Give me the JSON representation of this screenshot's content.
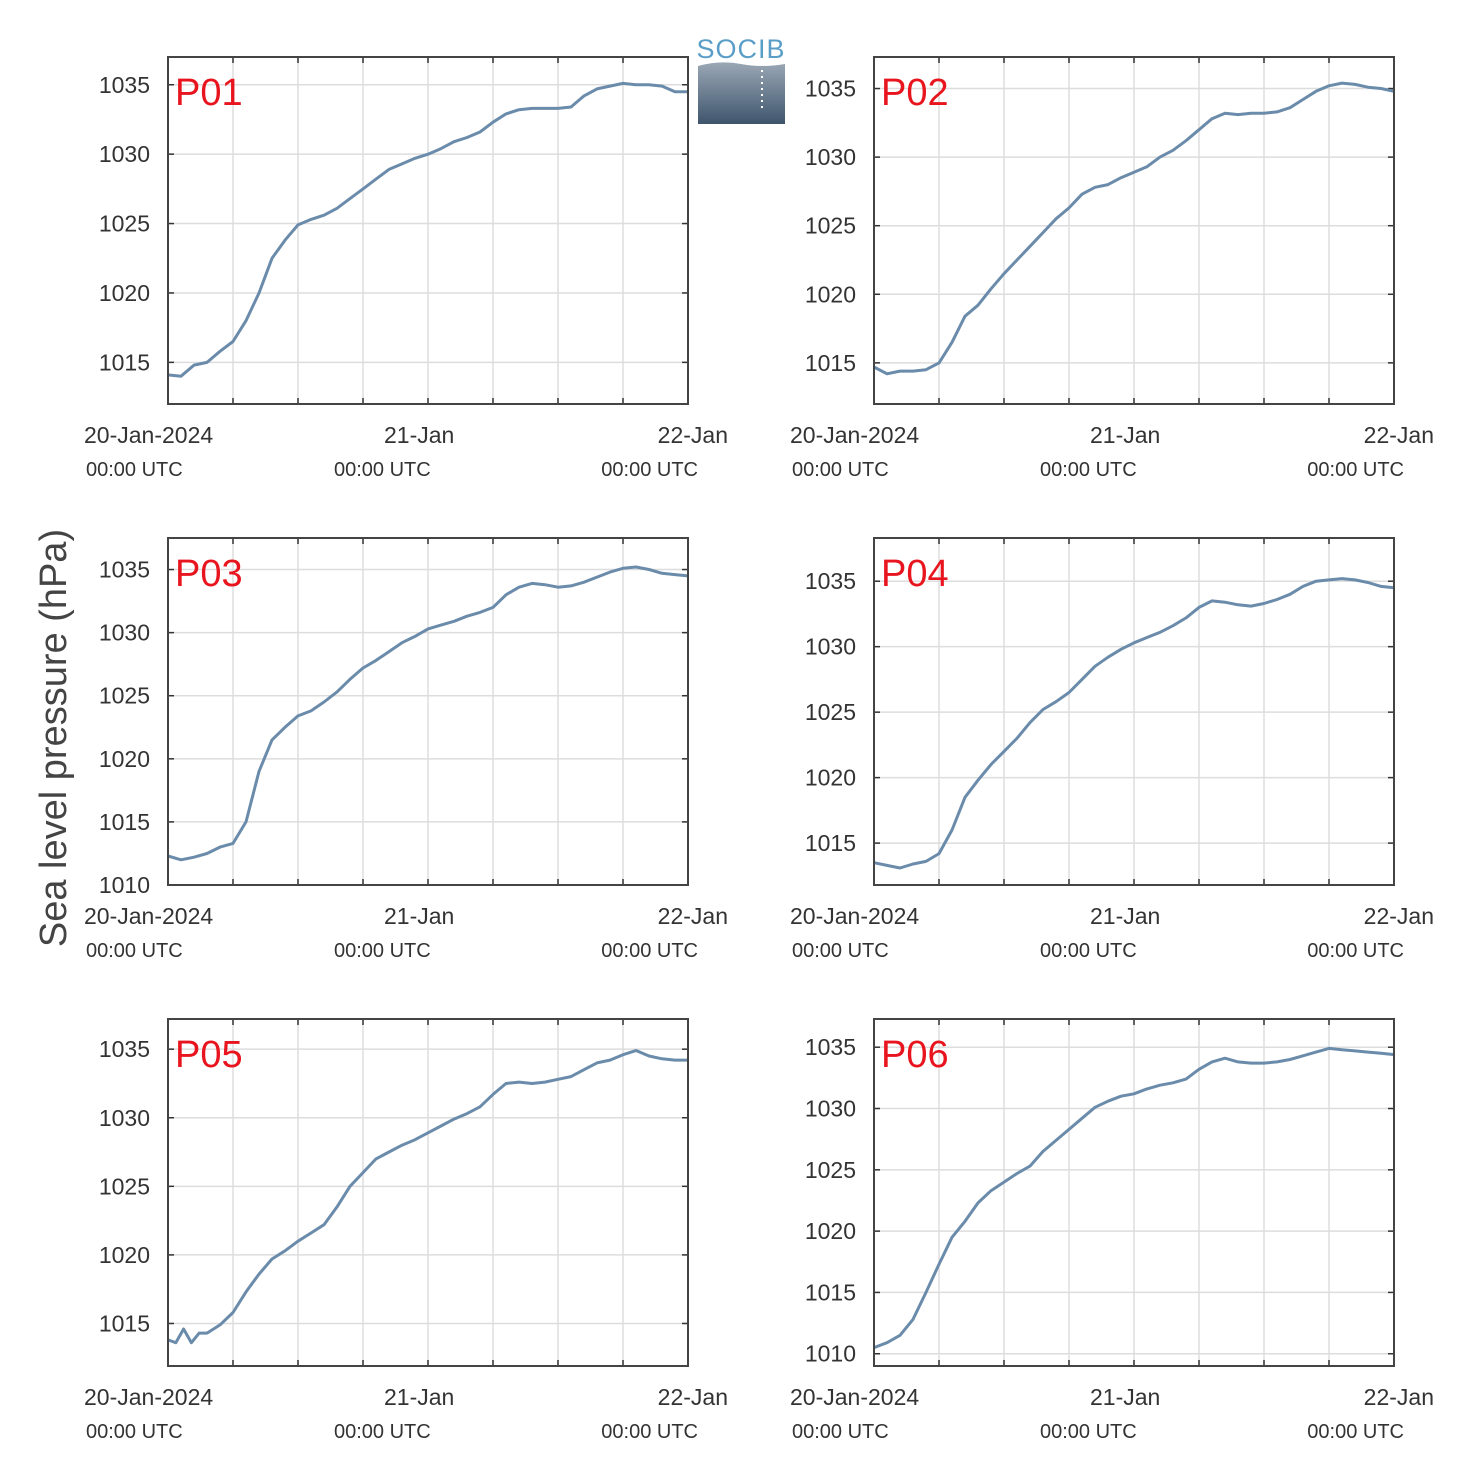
{
  "figure": {
    "ylabel": "Sea level pressure (hPa)",
    "logo_text": "SOCIB",
    "line_color": "#6b8bab",
    "label_color": "#e8141e",
    "grid_color": "#dddddd"
  },
  "x_ticks": [
    {
      "pos": 0,
      "line1": "20-Jan-2024",
      "line2": "00:00 UTC"
    },
    {
      "pos": 1,
      "line1": "21-Jan",
      "line2": "00:00 UTC"
    },
    {
      "pos": 2,
      "line1": "22-Jan",
      "line2": "00:00 UTC"
    }
  ],
  "chart_data": [
    {
      "type": "line",
      "label": "P01",
      "ylabel": "Sea level pressure (hPa)",
      "xlim": [
        0,
        2
      ],
      "ylim": [
        1012,
        1037
      ],
      "yticks": [
        1015,
        1020,
        1025,
        1030,
        1035
      ],
      "x": [
        0,
        0.05,
        0.1,
        0.15,
        0.2,
        0.25,
        0.3,
        0.35,
        0.4,
        0.45,
        0.5,
        0.55,
        0.6,
        0.65,
        0.7,
        0.75,
        0.8,
        0.85,
        0.9,
        0.95,
        1.0,
        1.05,
        1.1,
        1.15,
        1.2,
        1.25,
        1.3,
        1.35,
        1.4,
        1.45,
        1.5,
        1.55,
        1.6,
        1.65,
        1.7,
        1.75,
        1.8,
        1.85,
        1.9,
        1.95,
        2.0
      ],
      "y": [
        1014.1,
        1014.0,
        1014.8,
        1015.0,
        1015.8,
        1016.5,
        1018.0,
        1020.0,
        1022.5,
        1023.8,
        1024.9,
        1025.3,
        1025.6,
        1026.1,
        1026.8,
        1027.5,
        1028.2,
        1028.9,
        1029.3,
        1029.7,
        1030.0,
        1030.4,
        1030.9,
        1031.2,
        1031.6,
        1032.3,
        1032.9,
        1033.2,
        1033.3,
        1033.3,
        1033.3,
        1033.4,
        1034.2,
        1034.7,
        1034.9,
        1035.1,
        1035.0,
        1035.0,
        1034.9,
        1034.5,
        1034.5
      ]
    },
    {
      "type": "line",
      "label": "P02",
      "ylabel": "Sea level pressure (hPa)",
      "xlim": [
        0,
        2
      ],
      "ylim": [
        1012,
        1037.3
      ],
      "yticks": [
        1015,
        1020,
        1025,
        1030,
        1035
      ],
      "x": [
        0,
        0.05,
        0.1,
        0.15,
        0.2,
        0.25,
        0.3,
        0.35,
        0.4,
        0.45,
        0.5,
        0.55,
        0.6,
        0.65,
        0.7,
        0.75,
        0.8,
        0.85,
        0.9,
        0.95,
        1.0,
        1.05,
        1.1,
        1.15,
        1.2,
        1.25,
        1.3,
        1.35,
        1.4,
        1.45,
        1.5,
        1.55,
        1.6,
        1.65,
        1.7,
        1.75,
        1.8,
        1.85,
        1.9,
        1.95,
        2.0
      ],
      "y": [
        1014.7,
        1014.2,
        1014.4,
        1014.4,
        1014.5,
        1015.0,
        1016.5,
        1018.4,
        1019.2,
        1020.4,
        1021.5,
        1022.5,
        1023.5,
        1024.5,
        1025.5,
        1026.3,
        1027.3,
        1027.8,
        1028.0,
        1028.5,
        1028.9,
        1029.3,
        1030.0,
        1030.5,
        1031.2,
        1032.0,
        1032.8,
        1033.2,
        1033.1,
        1033.2,
        1033.2,
        1033.3,
        1033.6,
        1034.2,
        1034.8,
        1035.2,
        1035.4,
        1035.3,
        1035.1,
        1035.0,
        1034.8
      ]
    },
    {
      "type": "line",
      "label": "P03",
      "ylabel": "Sea level pressure (hPa)",
      "xlim": [
        0,
        2
      ],
      "ylim": [
        1010,
        1037.5
      ],
      "yticks": [
        1010,
        1015,
        1020,
        1025,
        1030,
        1035
      ],
      "x": [
        0,
        0.05,
        0.1,
        0.15,
        0.2,
        0.25,
        0.3,
        0.35,
        0.4,
        0.45,
        0.5,
        0.55,
        0.6,
        0.65,
        0.7,
        0.75,
        0.8,
        0.85,
        0.9,
        0.95,
        1.0,
        1.05,
        1.1,
        1.15,
        1.2,
        1.25,
        1.3,
        1.35,
        1.4,
        1.45,
        1.5,
        1.55,
        1.6,
        1.65,
        1.7,
        1.75,
        1.8,
        1.85,
        1.9,
        1.95,
        2.0
      ],
      "y": [
        1012.3,
        1012.0,
        1012.2,
        1012.5,
        1013.0,
        1013.3,
        1015.0,
        1019.0,
        1021.5,
        1022.5,
        1023.4,
        1023.8,
        1024.5,
        1025.3,
        1026.3,
        1027.2,
        1027.8,
        1028.5,
        1029.2,
        1029.7,
        1030.3,
        1030.6,
        1030.9,
        1031.3,
        1031.6,
        1032.0,
        1033.0,
        1033.6,
        1033.9,
        1033.8,
        1033.6,
        1033.7,
        1034.0,
        1034.4,
        1034.8,
        1035.1,
        1035.2,
        1035.0,
        1034.7,
        1034.6,
        1034.5
      ]
    },
    {
      "type": "line",
      "label": "P04",
      "ylabel": "Sea level pressure (hPa)",
      "xlim": [
        0,
        2
      ],
      "ylim": [
        1011.8,
        1038.3
      ],
      "yticks": [
        1015,
        1020,
        1025,
        1030,
        1035
      ],
      "x": [
        0,
        0.05,
        0.1,
        0.15,
        0.2,
        0.25,
        0.3,
        0.35,
        0.4,
        0.45,
        0.5,
        0.55,
        0.6,
        0.65,
        0.7,
        0.75,
        0.8,
        0.85,
        0.9,
        0.95,
        1.0,
        1.05,
        1.1,
        1.15,
        1.2,
        1.25,
        1.3,
        1.35,
        1.4,
        1.45,
        1.5,
        1.55,
        1.6,
        1.65,
        1.7,
        1.75,
        1.8,
        1.85,
        1.9,
        1.95,
        2.0
      ],
      "y": [
        1013.5,
        1013.3,
        1013.1,
        1013.4,
        1013.6,
        1014.2,
        1016.0,
        1018.5,
        1019.8,
        1021.0,
        1022.0,
        1023.0,
        1024.2,
        1025.2,
        1025.8,
        1026.5,
        1027.5,
        1028.5,
        1029.2,
        1029.8,
        1030.3,
        1030.7,
        1031.1,
        1031.6,
        1032.2,
        1033.0,
        1033.5,
        1033.4,
        1033.2,
        1033.1,
        1033.3,
        1033.6,
        1034.0,
        1034.6,
        1035.0,
        1035.1,
        1035.2,
        1035.1,
        1034.9,
        1034.6,
        1034.5
      ]
    },
    {
      "type": "line",
      "label": "P05",
      "ylabel": "Sea level pressure (hPa)",
      "xlim": [
        0,
        2
      ],
      "ylim": [
        1011.9,
        1037.2
      ],
      "yticks": [
        1015,
        1020,
        1025,
        1030,
        1035
      ],
      "x": [
        0,
        0.03,
        0.06,
        0.09,
        0.12,
        0.15,
        0.2,
        0.25,
        0.3,
        0.35,
        0.4,
        0.45,
        0.5,
        0.55,
        0.6,
        0.65,
        0.7,
        0.75,
        0.8,
        0.85,
        0.9,
        0.95,
        1.0,
        1.05,
        1.1,
        1.15,
        1.2,
        1.25,
        1.3,
        1.35,
        1.4,
        1.45,
        1.5,
        1.55,
        1.6,
        1.65,
        1.7,
        1.75,
        1.8,
        1.85,
        1.9,
        1.95,
        2.0
      ],
      "y": [
        1013.8,
        1013.6,
        1014.6,
        1013.6,
        1014.3,
        1014.3,
        1014.9,
        1015.8,
        1017.3,
        1018.6,
        1019.7,
        1020.3,
        1021.0,
        1021.6,
        1022.2,
        1023.5,
        1025.0,
        1026.0,
        1027.0,
        1027.5,
        1028.0,
        1028.4,
        1028.9,
        1029.4,
        1029.9,
        1030.3,
        1030.8,
        1031.7,
        1032.5,
        1032.6,
        1032.5,
        1032.6,
        1032.8,
        1033.0,
        1033.5,
        1034.0,
        1034.2,
        1034.6,
        1034.9,
        1034.5,
        1034.3,
        1034.2,
        1034.2
      ]
    },
    {
      "type": "line",
      "label": "P06",
      "ylabel": "Sea level pressure (hPa)",
      "xlim": [
        0,
        2
      ],
      "ylim": [
        1009,
        1037.3
      ],
      "yticks": [
        1010,
        1015,
        1020,
        1025,
        1030,
        1035
      ],
      "x": [
        0,
        0.05,
        0.1,
        0.15,
        0.2,
        0.25,
        0.3,
        0.35,
        0.4,
        0.45,
        0.5,
        0.55,
        0.6,
        0.65,
        0.7,
        0.75,
        0.8,
        0.85,
        0.9,
        0.95,
        1.0,
        1.05,
        1.1,
        1.15,
        1.2,
        1.25,
        1.3,
        1.35,
        1.4,
        1.45,
        1.5,
        1.55,
        1.6,
        1.65,
        1.7,
        1.75,
        1.8,
        1.85,
        1.9,
        1.95,
        2.0
      ],
      "y": [
        1010.5,
        1010.9,
        1011.5,
        1012.8,
        1015.0,
        1017.3,
        1019.5,
        1020.8,
        1022.3,
        1023.3,
        1024.0,
        1024.7,
        1025.3,
        1026.5,
        1027.4,
        1028.3,
        1029.2,
        1030.1,
        1030.6,
        1031.0,
        1031.2,
        1031.6,
        1031.9,
        1032.1,
        1032.4,
        1033.2,
        1033.8,
        1034.1,
        1033.8,
        1033.7,
        1033.7,
        1033.8,
        1034.0,
        1034.3,
        1034.6,
        1034.9,
        1034.8,
        1034.7,
        1034.6,
        1034.5,
        1034.4
      ]
    }
  ]
}
